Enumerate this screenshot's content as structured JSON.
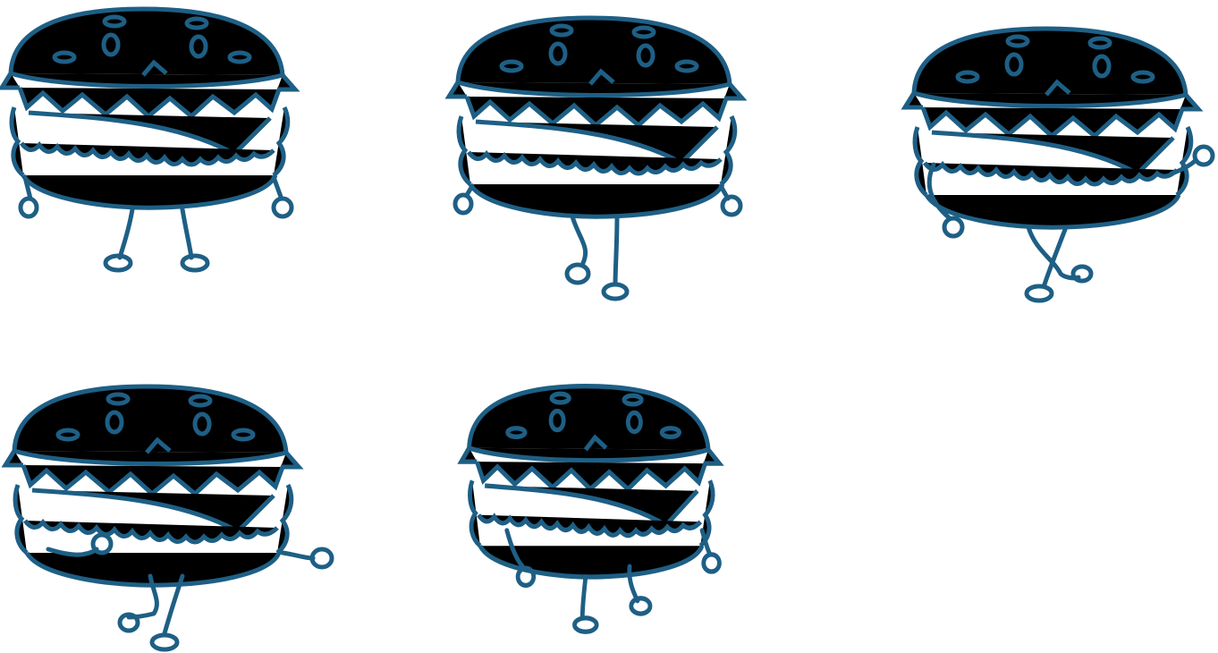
{
  "artwork": {
    "style": "hand-drawn crayon line art",
    "ink_color": "#1e5f85",
    "background_color": "#ffffff",
    "subject": "hamburger-character",
    "poses": [
      {
        "pose": "standing",
        "arms": "down",
        "legs": "straight"
      },
      {
        "pose": "walking",
        "arms": "down",
        "legs": "step-back"
      },
      {
        "pose": "walking",
        "arms": "swinging",
        "legs": "crossed"
      },
      {
        "pose": "walking",
        "arms": "swinging",
        "legs": "kick-back"
      },
      {
        "pose": "standing",
        "arms": "bent",
        "legs": "knees-bent"
      }
    ]
  }
}
